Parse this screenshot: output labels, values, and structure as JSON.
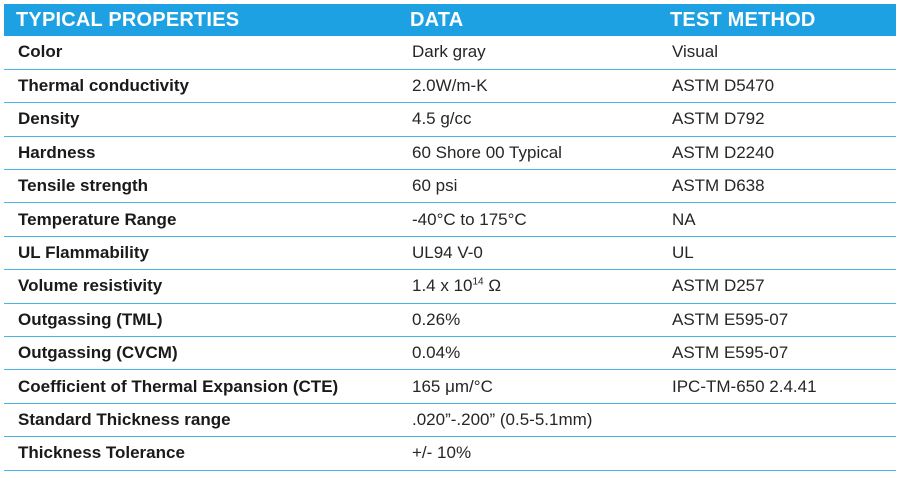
{
  "header": {
    "col1": "TYPICAL PROPERTIES",
    "col2": "DATA",
    "col3": "TEST METHOD"
  },
  "rows": [
    {
      "property": "Color",
      "data": "Dark gray",
      "method": "Visual"
    },
    {
      "property": "Thermal conductivity",
      "data": "2.0W/m-K",
      "method": "ASTM D5470"
    },
    {
      "property": "Density",
      "data": "4.5 g/cc",
      "method": "ASTM D792"
    },
    {
      "property": "Hardness",
      "data": "60 Shore 00 Typical",
      "method": "ASTM D2240"
    },
    {
      "property": "Tensile strength",
      "data": "60 psi",
      "method": "ASTM D638"
    },
    {
      "property": "Temperature Range",
      "data": "-40°C to 175°C",
      "method": "NA"
    },
    {
      "property": "UL Flammability",
      "data": "UL94 V-0",
      "method": "UL"
    },
    {
      "property": "Volume resistivity",
      "data": "1.4 x 10",
      "data_exp": "14",
      "data_unit": " Ω",
      "method": "ASTM D257"
    },
    {
      "property": "Outgassing (TML)",
      "data": "0.26%",
      "method": "ASTM E595-07"
    },
    {
      "property": "Outgassing (CVCM)",
      "data": "0.04%",
      "method": "ASTM E595-07"
    },
    {
      "property": "Coefficient of Thermal Expansion (CTE)",
      "data": "165 μm/°C",
      "method": "IPC-TM-650 2.4.41"
    },
    {
      "property": "Standard Thickness range",
      "data": " .020”-.200” (0.5-5.1mm)",
      "method": ""
    },
    {
      "property": "Thickness Tolerance",
      "data": "+/- 10%",
      "method": ""
    }
  ],
  "colors": {
    "header_bg": "#1da1e3",
    "header_text": "#ffffff",
    "row_divider": "#49b3e6"
  }
}
